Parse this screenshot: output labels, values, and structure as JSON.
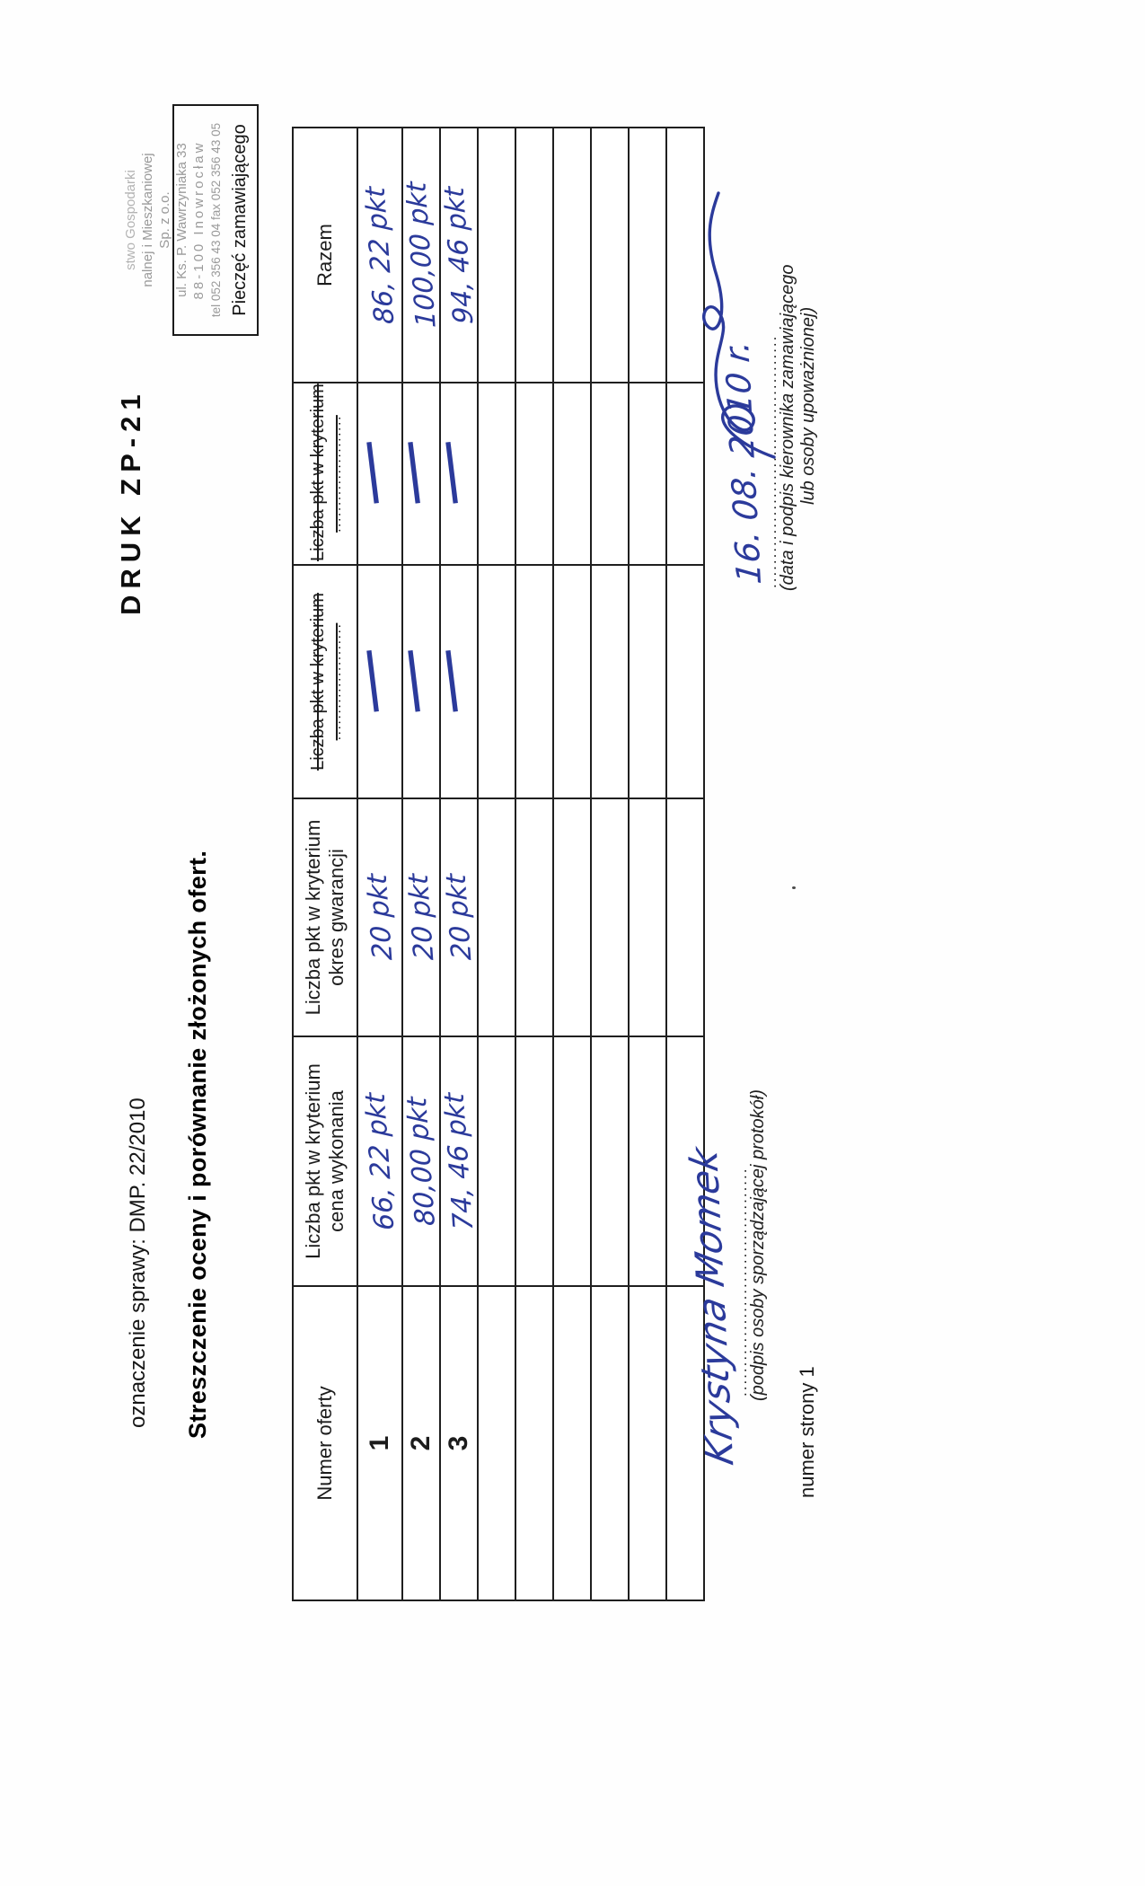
{
  "page": {
    "case_label": "oznaczenie sprawy: DMP. 22/2010",
    "form_code": "DRUK ZP-21",
    "heading": "Streszczenie oceny i porównanie złożonych ofert.",
    "page_number_label": "numer strony 1"
  },
  "stamp": {
    "line1": "stwo Gospodarki",
    "line2": "nalnej i Mieszkaniowej",
    "line3": "Sp. z o.o.",
    "line4": "ul. Ks. P. Wawrzyniaka 33",
    "line5": "88-100 Inowrocław",
    "line6": "tel 052 356 43 04 fax 052 356 43 05",
    "label": "Pieczęć zamawiającego"
  },
  "table": {
    "headers": [
      "Numer oferty",
      "Liczba pkt w kryterium cena wykonania",
      "Liczba pkt w kryterium okres gwarancji",
      "Liczba pkt w kryterium",
      "Liczba pkt w kryterium",
      "Razem"
    ],
    "crossed_header_dots": "......................",
    "rows": [
      {
        "nr": "1",
        "cena": "66, 22 pkt",
        "gwarancja": "20 pkt",
        "kryt3": "—",
        "kryt4": "—",
        "razem": "86, 22 pkt"
      },
      {
        "nr": "2",
        "cena": "80,00 pkt",
        "gwarancja": "20 pkt",
        "kryt3": "—",
        "kryt4": "—",
        "razem": "100,00 pkt"
      },
      {
        "nr": "3",
        "cena": "74, 46 pkt",
        "gwarancja": "20 pkt",
        "kryt3": "—",
        "kryt4": "—",
        "razem": "94, 46 pkt"
      }
    ],
    "empty_row_count": 6
  },
  "signatures": {
    "left": {
      "handwriting": "Krystyna Momek",
      "dots": "......................................",
      "label": "(podpis osoby sporządzającej protokół)"
    },
    "right": {
      "handwriting": "16. 08. 2010 r.",
      "dots": "..........................................",
      "label_line1": "(data i podpis kierownika zamawiającego",
      "label_line2": "lub osoby upoważnionej)"
    }
  },
  "colors": {
    "ink": "#2b3a9b",
    "paper": "#fefefe",
    "stamp_grey": "#9a9a9a",
    "border": "#1f1f1f"
  }
}
